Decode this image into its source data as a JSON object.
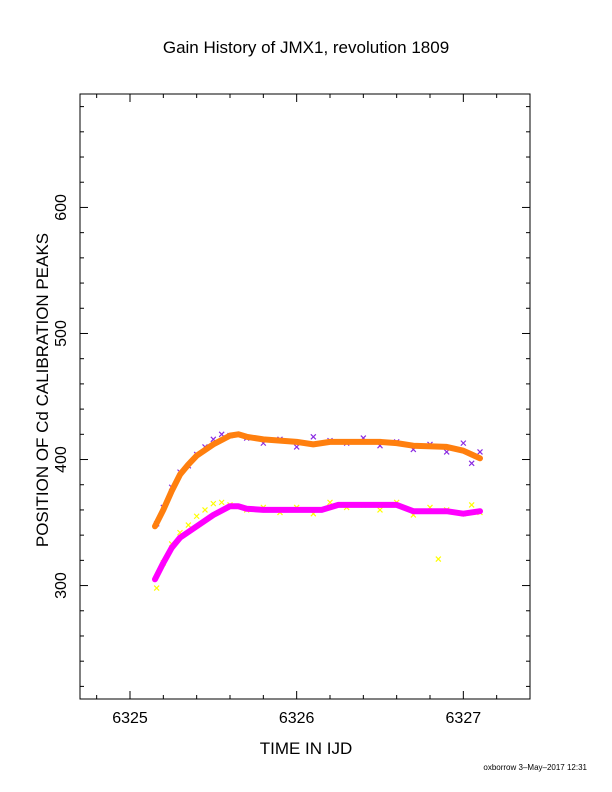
{
  "chart_data": {
    "type": "scatter",
    "title": "Gain History of JMX1, revolution 1809",
    "xlabel": "TIME IN IJD",
    "ylabel": "POSITION OF Cd CALIBRATION PEAKS",
    "xlim": [
      6324.7,
      6327.4
    ],
    "ylim": [
      210,
      690
    ],
    "xticks": [
      6325,
      6326,
      6327
    ],
    "xtick_labels": [
      "6325",
      "6326",
      "6327"
    ],
    "yticks": [
      300,
      400,
      500,
      600
    ],
    "ytick_labels": [
      "300",
      "400",
      "500",
      "600"
    ],
    "grid": false,
    "legend": "none",
    "series": [
      {
        "style": "scatter",
        "marker": "x",
        "color": "#8a2be2",
        "x": [
          6325.16,
          6325.2,
          6325.25,
          6325.3,
          6325.35,
          6325.4,
          6325.45,
          6325.5,
          6325.55,
          6325.6,
          6325.7,
          6325.8,
          6325.9,
          6326.0,
          6326.1,
          6326.2,
          6326.3,
          6326.4,
          6326.5,
          6326.6,
          6326.7,
          6326.8,
          6326.9,
          6327.0,
          6327.05,
          6327.1
        ],
        "y": [
          349,
          362,
          378,
          390,
          395,
          404,
          410,
          416,
          420,
          419,
          417,
          413,
          416,
          410,
          418,
          415,
          413,
          417,
          411,
          414,
          408,
          412,
          406,
          413,
          397,
          406
        ]
      },
      {
        "style": "line",
        "color": "#ff7f0e",
        "x": [
          6325.15,
          6325.2,
          6325.25,
          6325.3,
          6325.35,
          6325.4,
          6325.5,
          6325.6,
          6325.65,
          6325.7,
          6325.8,
          6325.9,
          6326.0,
          6326.1,
          6326.2,
          6326.3,
          6326.5,
          6326.6,
          6326.7,
          6326.9,
          6327.0,
          6327.05,
          6327.1
        ],
        "y": [
          347,
          360,
          375,
          388,
          396,
          403,
          412,
          419,
          420,
          418,
          416,
          415,
          414,
          412,
          414,
          414,
          414,
          413,
          411,
          410,
          407,
          404,
          401
        ]
      },
      {
        "style": "scatter",
        "marker": "x",
        "color": "#ffff00",
        "x": [
          6325.16,
          6325.2,
          6325.25,
          6325.3,
          6325.35,
          6325.4,
          6325.45,
          6325.5,
          6325.55,
          6325.6,
          6325.7,
          6325.8,
          6325.9,
          6326.0,
          6326.1,
          6326.2,
          6326.3,
          6326.4,
          6326.5,
          6326.6,
          6326.7,
          6326.8,
          6326.85,
          6326.9,
          6327.0,
          6327.05,
          6327.1
        ],
        "y": [
          298,
          318,
          333,
          342,
          348,
          355,
          360,
          365,
          366,
          364,
          360,
          362,
          358,
          362,
          357,
          366,
          362,
          364,
          360,
          366,
          356,
          362,
          321,
          360,
          357,
          364,
          358
        ]
      },
      {
        "style": "line",
        "color": "#ff00ff",
        "x": [
          6325.15,
          6325.2,
          6325.25,
          6325.3,
          6325.4,
          6325.5,
          6325.6,
          6325.65,
          6325.7,
          6325.8,
          6326.0,
          6326.15,
          6326.25,
          6326.6,
          6326.7,
          6326.9,
          6327.0,
          6327.1
        ],
        "y": [
          305,
          318,
          330,
          338,
          347,
          356,
          363,
          363,
          361,
          360,
          360,
          360,
          364,
          364,
          359,
          359,
          357,
          359
        ]
      }
    ]
  },
  "footer": {
    "credit": "oxborrow  3–May–2017 12:31"
  }
}
